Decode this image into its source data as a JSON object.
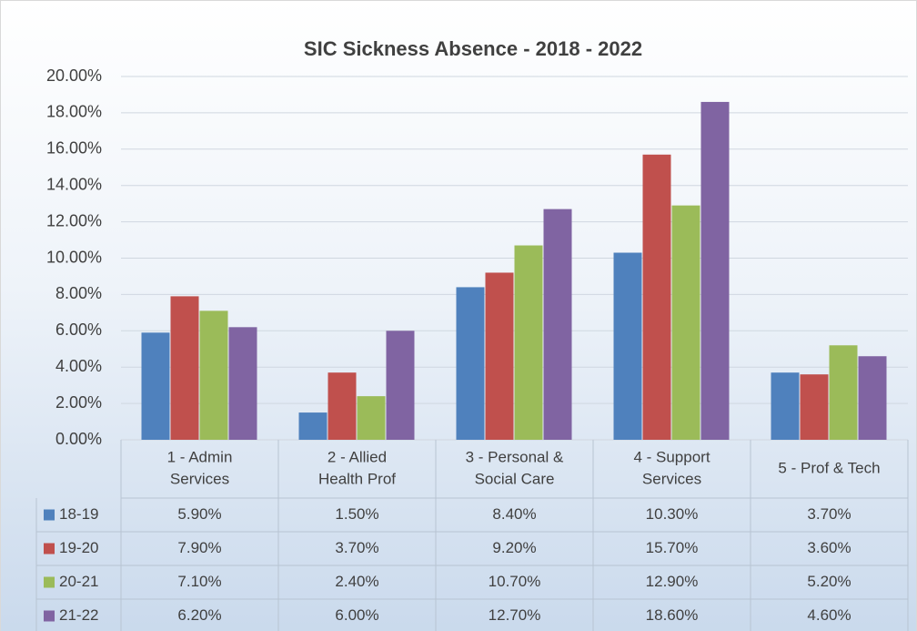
{
  "chart_data": {
    "type": "bar",
    "title": "SIC Sickness Absence - 2018 - 2022",
    "categories": [
      [
        "1 - Admin",
        "Services"
      ],
      [
        "2 - Allied",
        "Health Prof"
      ],
      [
        "3 - Personal &",
        "Social Care"
      ],
      [
        "4 - Support",
        "Services"
      ],
      [
        "5 - Prof & Tech"
      ]
    ],
    "series": [
      {
        "name": "18-19",
        "color": "#4f81bd",
        "values": [
          5.9,
          1.5,
          8.4,
          10.3,
          3.7
        ],
        "value_labels": [
          "5.90%",
          "1.50%",
          "8.40%",
          "10.30%",
          "3.70%"
        ]
      },
      {
        "name": "19-20",
        "color": "#c0504d",
        "values": [
          7.9,
          3.7,
          9.2,
          15.7,
          3.6
        ],
        "value_labels": [
          "7.90%",
          "3.70%",
          "9.20%",
          "15.70%",
          "3.60%"
        ]
      },
      {
        "name": "20-21",
        "color": "#9bbb59",
        "values": [
          7.1,
          2.4,
          10.7,
          12.9,
          5.2
        ],
        "value_labels": [
          "7.10%",
          "2.40%",
          "10.70%",
          "12.90%",
          "5.20%"
        ]
      },
      {
        "name": "21-22",
        "color": "#8064a2",
        "values": [
          6.2,
          6.0,
          12.7,
          18.6,
          4.6
        ],
        "value_labels": [
          "6.20%",
          "6.00%",
          "12.70%",
          "18.60%",
          "4.60%"
        ]
      }
    ],
    "ylim": [
      0,
      20
    ],
    "yticks": [
      {
        "value": 0,
        "label": "0.00%"
      },
      {
        "value": 2,
        "label": "2.00%"
      },
      {
        "value": 4,
        "label": "4.00%"
      },
      {
        "value": 6,
        "label": "6.00%"
      },
      {
        "value": 8,
        "label": "8.00%"
      },
      {
        "value": 10,
        "label": "10.00%"
      },
      {
        "value": 12,
        "label": "12.00%"
      },
      {
        "value": 14,
        "label": "14.00%"
      },
      {
        "value": 16,
        "label": "16.00%"
      },
      {
        "value": 18,
        "label": "18.00%"
      },
      {
        "value": 20,
        "label": "20.00%"
      }
    ],
    "grid": true
  }
}
